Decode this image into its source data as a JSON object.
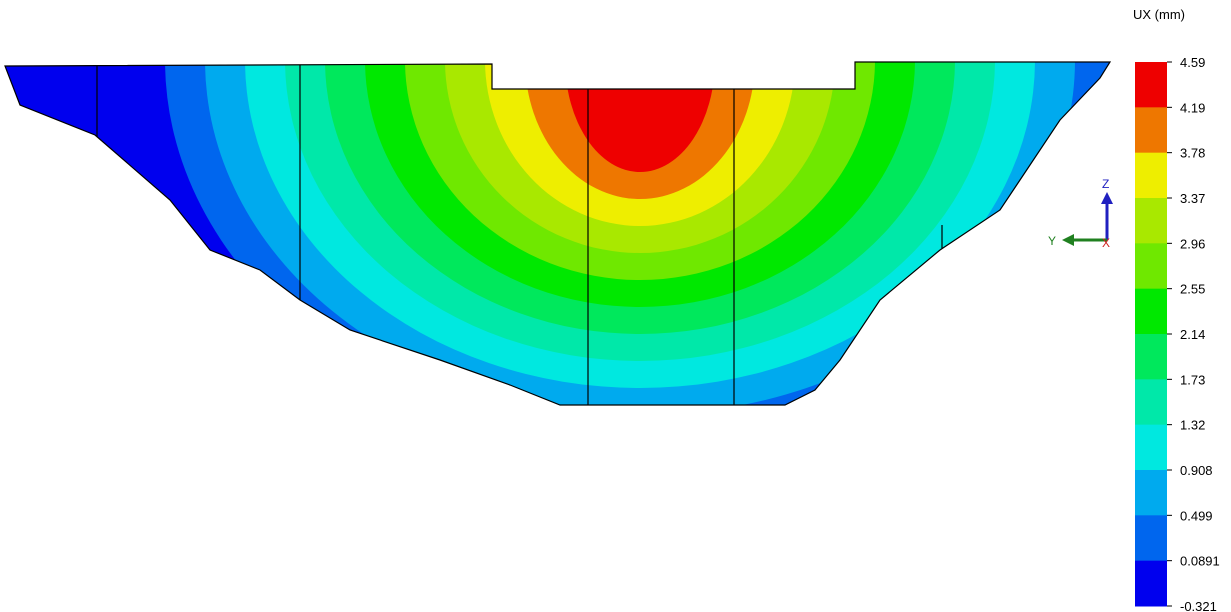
{
  "legend": {
    "title": "UX (mm)",
    "levels": [
      "4.59",
      "4.19",
      "3.78",
      "3.37",
      "2.96",
      "2.55",
      "2.14",
      "1.73",
      "1.32",
      "0.908",
      "0.499",
      "0.0891",
      "-0.321"
    ],
    "band_colors": [
      "#ee0000",
      "#ee7700",
      "#eeee00",
      "#a9e800",
      "#6fe800",
      "#00e800",
      "#00e85c",
      "#00e8a9",
      "#00e8e0",
      "#00aaee",
      "#0066ee",
      "#0000ee"
    ]
  },
  "triad": {
    "z_label": "Z",
    "y_label": "Y",
    "x_label": "X",
    "z_color": "#2020c0",
    "y_color": "#208020",
    "x_color": "#d02020"
  },
  "model": {
    "outline_color": "#000000"
  }
}
